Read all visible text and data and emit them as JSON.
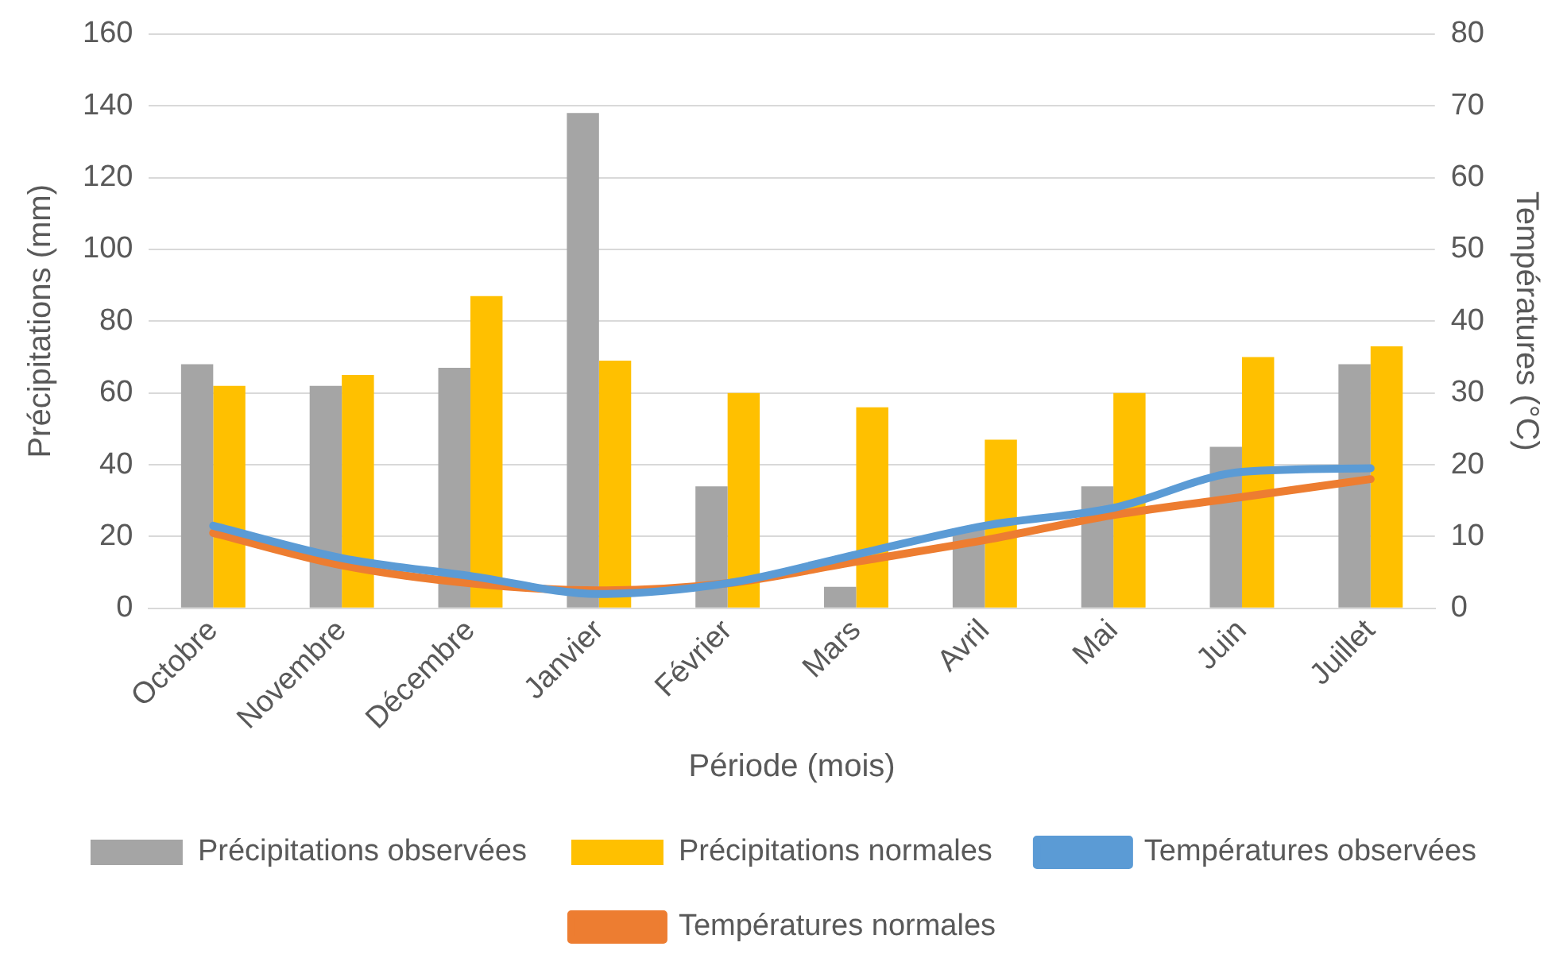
{
  "chart_data": {
    "type": "bar",
    "xlabel": "Période (mois)",
    "ylabel": "Précipitations (mm)",
    "y2label": "Températures (°C)",
    "categories": [
      "Octobre",
      "Novembre",
      "Décembre",
      "Janvier",
      "Février",
      "Mars",
      "Avril",
      "Mai",
      "Juin",
      "Juillet"
    ],
    "series": [
      {
        "name": "Précipitations observées",
        "color": "#a5a5a5",
        "values": [
          68,
          62,
          67,
          138,
          34,
          6,
          22,
          34,
          45,
          68
        ]
      },
      {
        "name": "Précipitations normales",
        "color": "#ffc000",
        "values": [
          62,
          65,
          87,
          69,
          60,
          56,
          47,
          60,
          70,
          73
        ]
      },
      {
        "name": "Températures observées",
        "type": "line",
        "axis": "y2",
        "color": "#5b9bd5",
        "values": [
          11.5,
          7,
          4.5,
          2,
          3.5,
          7.5,
          11.5,
          14,
          19,
          19.5
        ]
      },
      {
        "name": "Températures normales",
        "type": "line",
        "axis": "y2",
        "color": "#ed7d31",
        "values": [
          10.5,
          6,
          3.5,
          2.5,
          3.5,
          6.5,
          9.5,
          13,
          15.5,
          18
        ]
      }
    ],
    "ylim": [
      0,
      160
    ],
    "yticks": [
      0,
      20,
      40,
      60,
      80,
      100,
      120,
      140,
      160
    ],
    "y2lim": [
      0,
      80
    ],
    "y2ticks": [
      0,
      10,
      20,
      30,
      40,
      50,
      60,
      70,
      80
    ],
    "grid": "y",
    "legend": "bottom",
    "marker": "none",
    "line_style": "solid"
  }
}
